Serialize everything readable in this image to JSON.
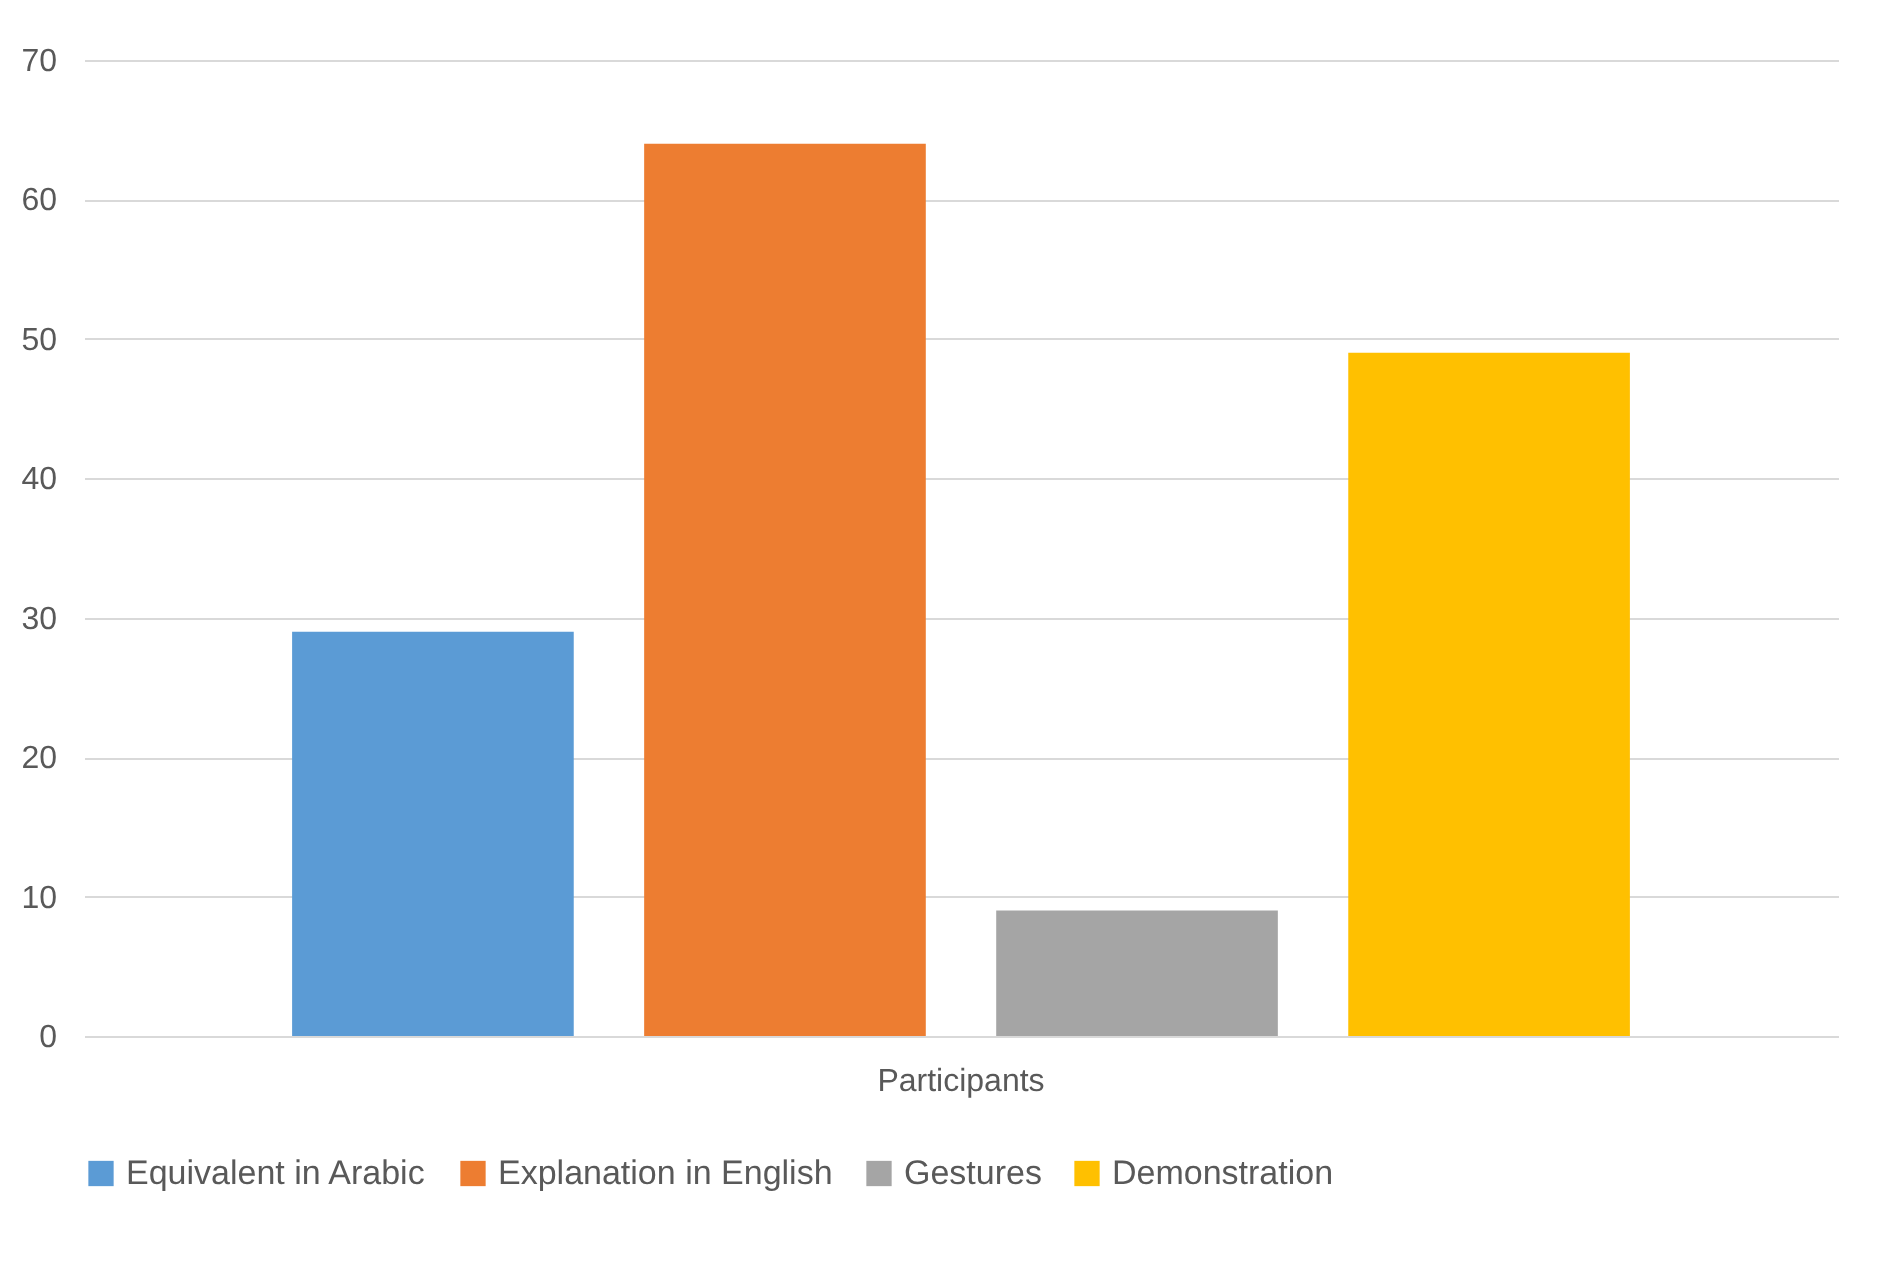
{
  "chart_data": {
    "type": "bar",
    "categories": [
      "Participants"
    ],
    "series": [
      {
        "name": "Equivalent in Arabic",
        "color": "#5b9bd5",
        "values": [
          29
        ]
      },
      {
        "name": "Explanation in English",
        "color": "#ed7d31",
        "values": [
          64
        ]
      },
      {
        "name": "Gestures",
        "color": "#a5a5a5",
        "values": [
          9
        ]
      },
      {
        "name": "Demonstration",
        "color": "#ffc000",
        "values": [
          49
        ]
      }
    ],
    "ylim": [
      0,
      70
    ],
    "yticks": [
      0,
      10,
      20,
      30,
      40,
      50,
      60,
      70
    ],
    "grid": "y",
    "legend": "bottom"
  }
}
